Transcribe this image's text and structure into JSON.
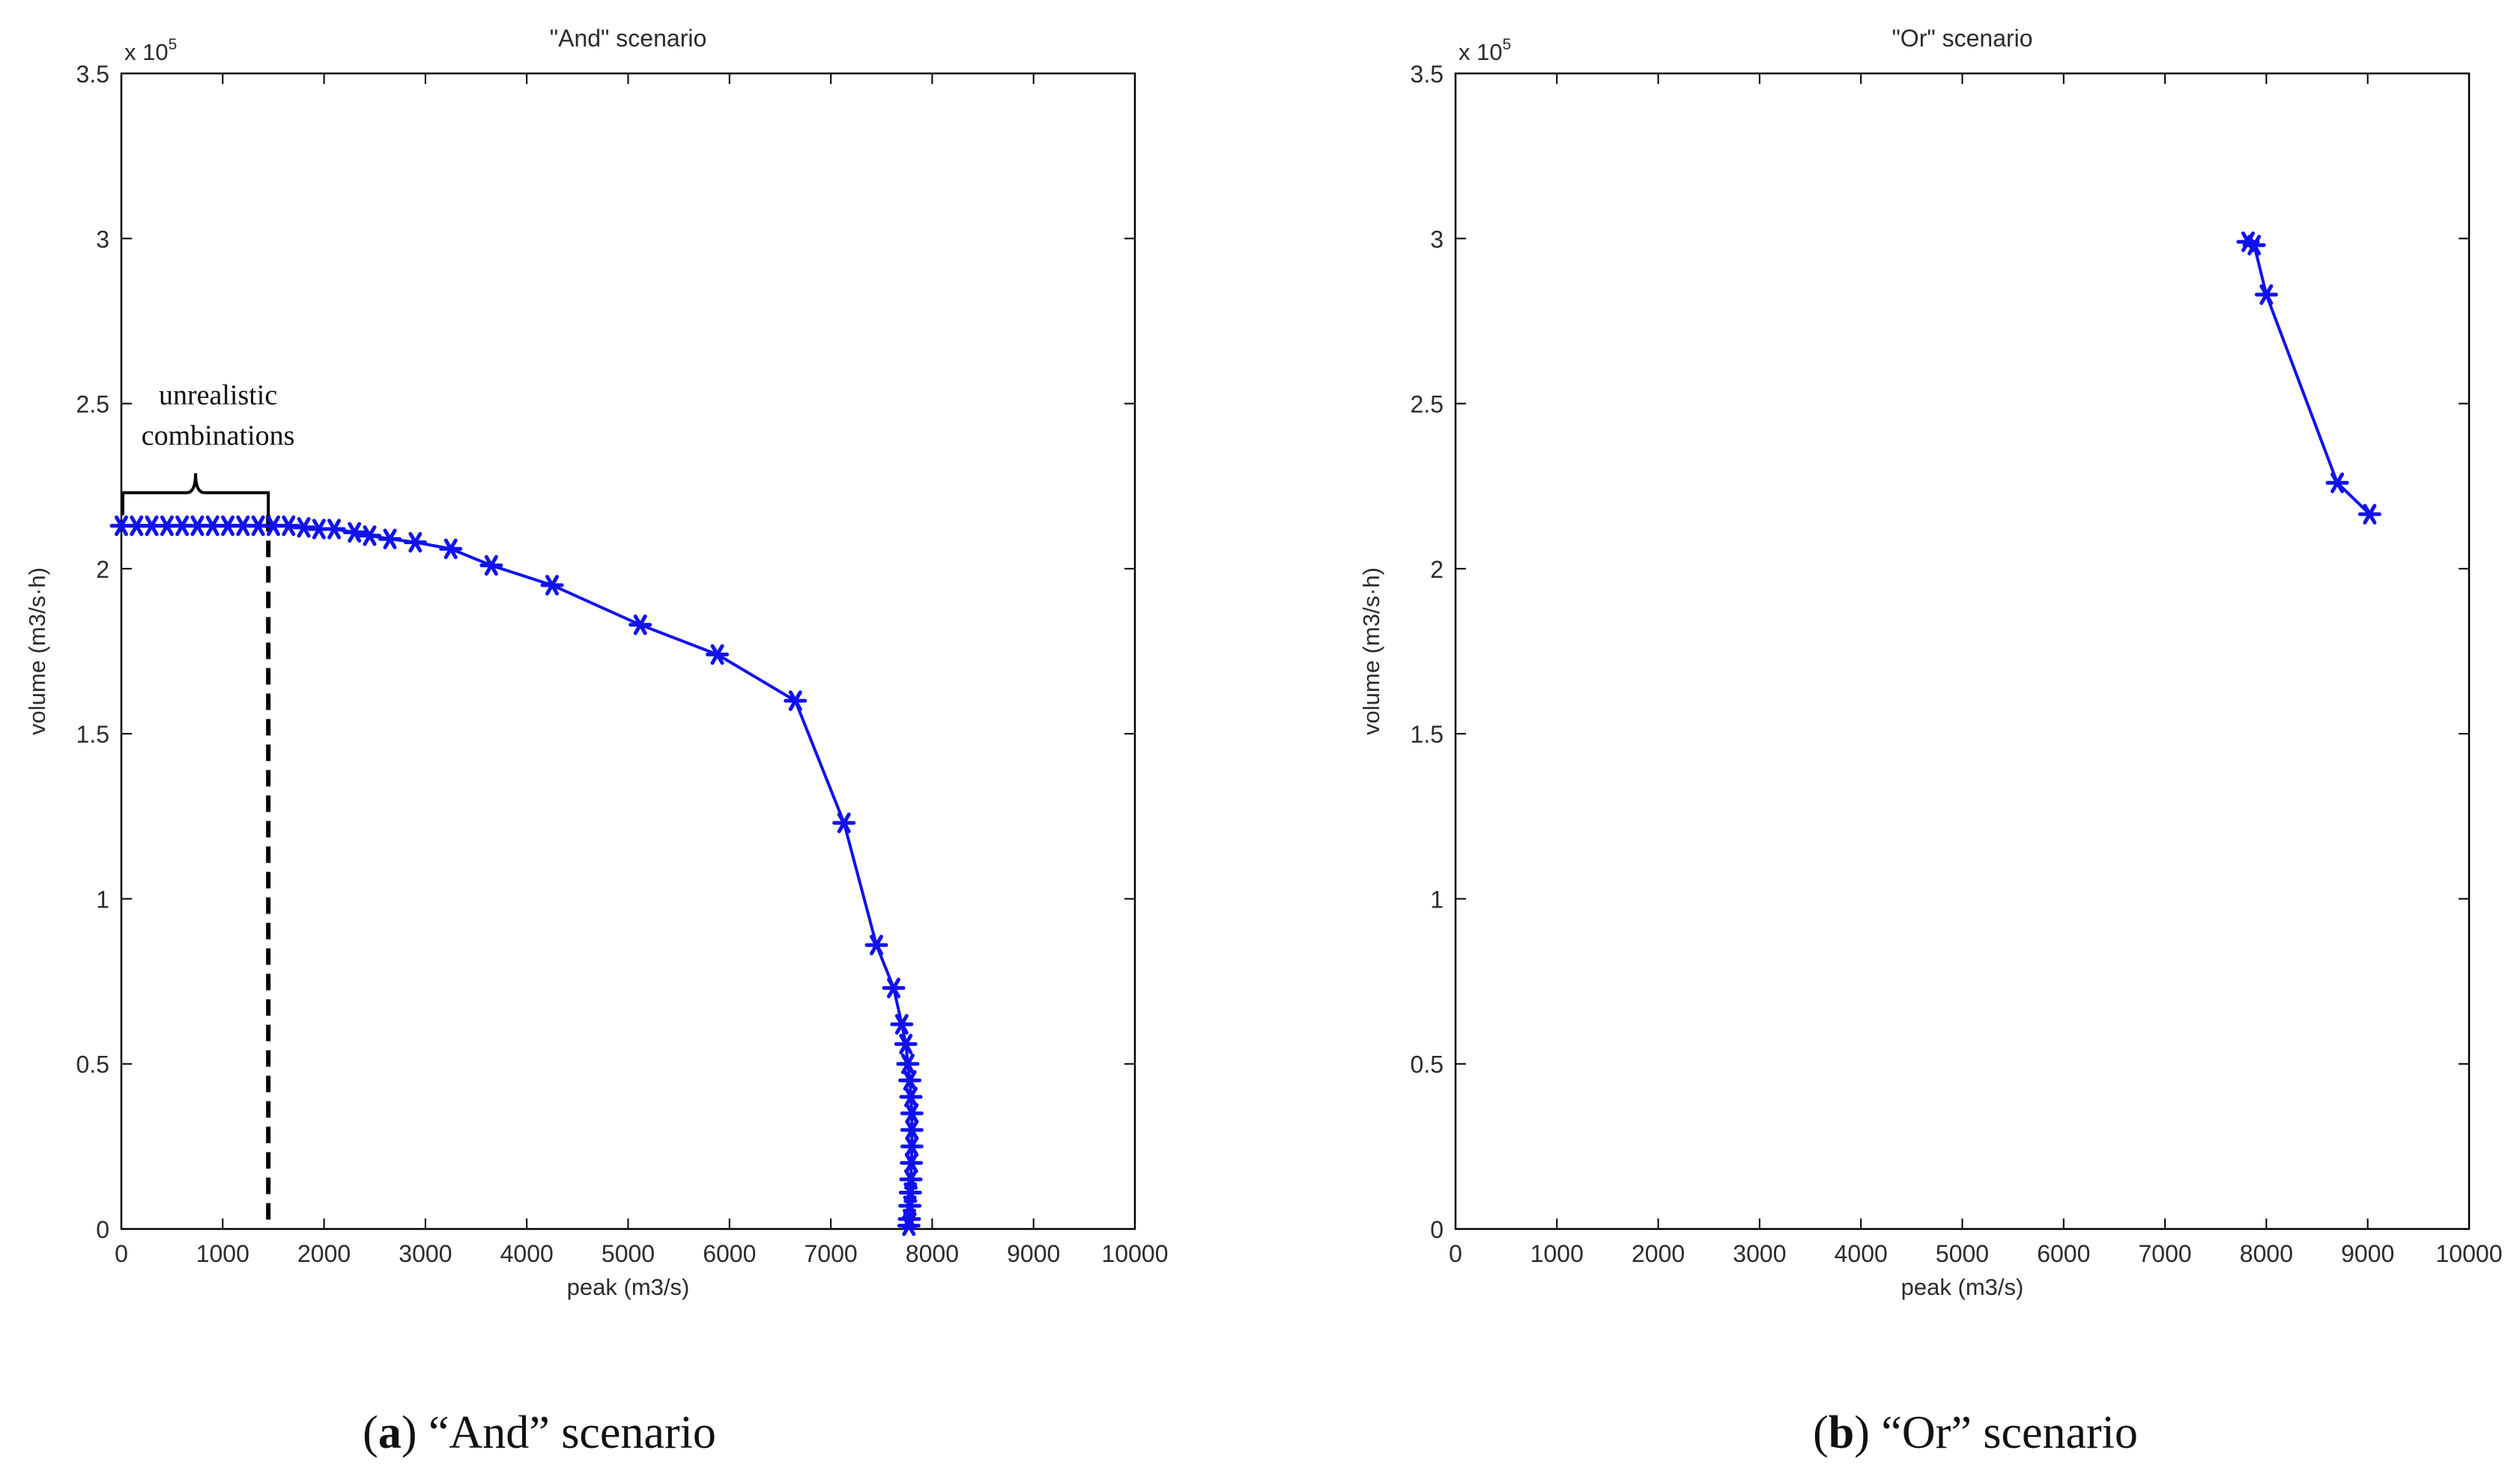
{
  "colors": {
    "series": "#1111ee",
    "axis": "#000000",
    "dashed": "#000000",
    "background": "#ffffff"
  },
  "chart_data": [
    {
      "type": "line",
      "id": "and",
      "title": "\"And\" scenario",
      "xlabel": "peak (m3/s)",
      "ylabel": "volume (m3/s·h)",
      "multiplier": "x 10",
      "multiplier_exp": "5",
      "xlim": [
        0,
        10000
      ],
      "ylim": [
        0,
        3.5
      ],
      "xticks": [
        0,
        1000,
        2000,
        3000,
        4000,
        5000,
        6000,
        7000,
        8000,
        9000,
        10000
      ],
      "yticks": [
        0,
        0.5,
        1,
        1.5,
        2,
        2.5,
        3,
        3.5
      ],
      "ytick_labels": [
        "0",
        "0.5",
        "1",
        "1.5",
        "2",
        "2.5",
        "3",
        "3.5"
      ],
      "marker": "star",
      "series": [
        {
          "name": "And",
          "x": [
            0,
            150,
            300,
            450,
            600,
            750,
            900,
            1050,
            1200,
            1350,
            1500,
            1650,
            1800,
            1950,
            2100,
            2300,
            2450,
            2650,
            2900,
            3250,
            3650,
            4250,
            5120,
            5880,
            6650,
            7130,
            7450,
            7620,
            7700,
            7740,
            7760,
            7780,
            7790,
            7800,
            7800,
            7800,
            7795,
            7790,
            7785,
            7780,
            7775,
            7770
          ],
          "y": [
            2.13,
            2.13,
            2.13,
            2.13,
            2.13,
            2.13,
            2.13,
            2.13,
            2.13,
            2.13,
            2.13,
            2.13,
            2.125,
            2.12,
            2.12,
            2.11,
            2.1,
            2.09,
            2.08,
            2.06,
            2.01,
            1.95,
            1.83,
            1.74,
            1.6,
            1.23,
            0.86,
            0.73,
            0.62,
            0.56,
            0.5,
            0.45,
            0.4,
            0.35,
            0.3,
            0.25,
            0.2,
            0.15,
            0.11,
            0.07,
            0.03,
            0.01
          ]
        }
      ],
      "annotation": {
        "text_line1": "unrealistic",
        "text_line2": "combinations",
        "brace_x_range": [
          0,
          1450
        ],
        "brace_y": 2.23,
        "dashed_line_x": 1450
      }
    },
    {
      "type": "line",
      "id": "or",
      "title": "\"Or\" scenario",
      "xlabel": "peak (m3/s)",
      "ylabel": "volume (m3/s·h)",
      "multiplier": "x 10",
      "multiplier_exp": "5",
      "xlim": [
        0,
        10000
      ],
      "ylim": [
        0,
        3.5
      ],
      "xticks": [
        0,
        1000,
        2000,
        3000,
        4000,
        5000,
        6000,
        7000,
        8000,
        9000,
        10000
      ],
      "yticks": [
        0,
        0.5,
        1,
        1.5,
        2,
        2.5,
        3,
        3.5
      ],
      "ytick_labels": [
        "0",
        "0.5",
        "1",
        "1.5",
        "2",
        "2.5",
        "3",
        "3.5"
      ],
      "marker": "star",
      "series": [
        {
          "name": "Or",
          "x": [
            7820,
            7880,
            8000,
            8700,
            9020
          ],
          "y": [
            2.99,
            2.98,
            2.83,
            2.26,
            2.165
          ]
        }
      ]
    }
  ],
  "captions": [
    {
      "open": "(",
      "letter": "a",
      "rest": ") “And” scenario"
    },
    {
      "open": "(",
      "letter": "b",
      "rest": ") “Or” scenario"
    }
  ]
}
